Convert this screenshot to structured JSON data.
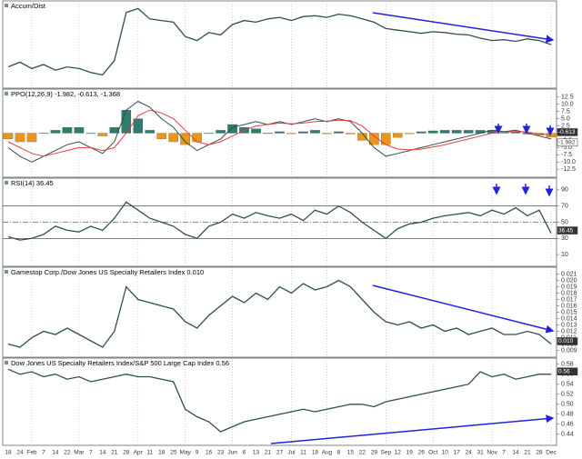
{
  "chart_data": [
    {
      "type": "line",
      "title": "Accum/Dist",
      "ylim": [
        0,
        100
      ],
      "series": [
        {
          "name": "Accum/Dist",
          "color": "#2f4f4f",
          "values": [
            22,
            28,
            20,
            25,
            18,
            22,
            20,
            15,
            12,
            30,
            90,
            95,
            82,
            80,
            78,
            60,
            55,
            65,
            62,
            75,
            80,
            78,
            82,
            84,
            80,
            85,
            86,
            84,
            88,
            86,
            82,
            78,
            70,
            68,
            66,
            64,
            66,
            65,
            63,
            62,
            58,
            55,
            56,
            54,
            57,
            55,
            50
          ]
        }
      ]
    },
    {
      "type": "line",
      "title": "PPO(12,26,9) -1.982, -0.613, -1.368",
      "ylim": [
        -14,
        14
      ],
      "yticks": [
        12.5,
        {
          "value": 10,
          "label": "10.0"
        },
        7.5,
        {
          "value": 5,
          "label": "5.0"
        },
        2.5,
        -2.5,
        {
          "value": -5,
          "label": "-5.0"
        },
        -7.5,
        {
          "value": -10,
          "label": "-10.0"
        },
        -12.5
      ],
      "end_labels": [
        {
          "value": -0.613,
          "label": "-0.613"
        },
        {
          "value": -1.982,
          "label": "-1.982"
        }
      ],
      "series": [
        {
          "name": "Histogram",
          "style": "bar",
          "color": "#2e7d6e",
          "negative_color": "#e8961e",
          "values": [
            -2,
            -3,
            -3,
            0,
            1,
            2,
            2,
            0,
            -1,
            2,
            8,
            5,
            1,
            -2,
            -3,
            -4,
            -3,
            0,
            1,
            3,
            2,
            1.5,
            0,
            0.5,
            -0.2,
            0.5,
            1,
            -0.2,
            0.5,
            -0.3,
            -2.5,
            -4,
            -4,
            -1.5,
            -0.2,
            0.5,
            0.8,
            1,
            1,
            1,
            1,
            1,
            0.2,
            0.4,
            -0.4,
            -0.7,
            -1.4
          ]
        },
        {
          "name": "PPO",
          "color": "#2f4f4f",
          "values": [
            -5,
            -8,
            -10,
            -8,
            -6,
            -4,
            -3,
            -5,
            -7,
            -3,
            8,
            11,
            9,
            5,
            2,
            -3,
            -6,
            -4,
            -2,
            2,
            3,
            4,
            3,
            4,
            3,
            4,
            5,
            4,
            5,
            4,
            0,
            -5,
            -8,
            -7,
            -6,
            -5,
            -4,
            -3,
            -2,
            -1,
            0,
            1,
            0.5,
            1,
            0,
            -1,
            -2
          ]
        },
        {
          "name": "Signal",
          "color": "#e04040",
          "values": [
            -3,
            -5,
            -7,
            -8,
            -7,
            -6,
            -5,
            -5,
            -6,
            -5,
            0,
            6,
            8,
            7,
            5,
            1,
            -3,
            -4,
            -3,
            -1,
            1,
            2.5,
            3,
            3.5,
            3.2,
            3.5,
            4,
            4.2,
            4.5,
            4.3,
            2.5,
            -1,
            -4,
            -5.5,
            -5.8,
            -5.5,
            -4.8,
            -4,
            -3,
            -2,
            -1,
            0,
            0.3,
            0.6,
            0.4,
            -0.3,
            -0.6
          ]
        }
      ]
    },
    {
      "type": "line",
      "title": "RSI(14) 36.45",
      "ylim": [
        0,
        100
      ],
      "yticks": [
        90,
        70,
        50,
        30,
        10
      ],
      "reference_lines": [
        70,
        50,
        30
      ],
      "end_labels": [
        {
          "value": 36.45,
          "label": "36.45"
        }
      ],
      "series": [
        {
          "name": "RSI",
          "color": "#2f4f4f",
          "values": [
            32,
            28,
            30,
            35,
            45,
            40,
            38,
            45,
            40,
            55,
            75,
            65,
            55,
            50,
            45,
            35,
            30,
            45,
            50,
            60,
            55,
            62,
            58,
            55,
            60,
            52,
            65,
            60,
            70,
            62,
            50,
            40,
            30,
            42,
            48,
            50,
            55,
            58,
            60,
            62,
            58,
            65,
            60,
            68,
            58,
            65,
            36.45
          ]
        }
      ]
    },
    {
      "type": "line",
      "title": "Gamestop Corp./Dow Jones US Specialty Retailers Index 0.010",
      "ylim": [
        0.0085,
        0.0215
      ],
      "yticks": [
        0.021,
        {
          "value": 0.02,
          "label": "0.020"
        },
        0.019,
        0.018,
        0.017,
        0.016,
        0.015,
        0.014,
        0.013,
        0.012,
        0.011,
        {
          "value": 0.01,
          "label": "0.010"
        },
        0.009
      ],
      "end_labels": [
        {
          "value": 0.01,
          "label": "0.010"
        }
      ],
      "series": [
        {
          "name": "Ratio",
          "color": "#2f4f4f",
          "values": [
            0.01,
            0.0095,
            0.011,
            0.012,
            0.0115,
            0.0125,
            0.0115,
            0.0105,
            0.0095,
            0.012,
            0.019,
            0.017,
            0.0165,
            0.016,
            0.0155,
            0.0135,
            0.0125,
            0.0145,
            0.016,
            0.0175,
            0.0165,
            0.018,
            0.017,
            0.019,
            0.018,
            0.0195,
            0.0185,
            0.019,
            0.02,
            0.019,
            0.017,
            0.015,
            0.0135,
            0.013,
            0.0135,
            0.0125,
            0.013,
            0.012,
            0.0125,
            0.0115,
            0.012,
            0.0125,
            0.0115,
            0.0115,
            0.012,
            0.0115,
            0.01
          ]
        }
      ]
    },
    {
      "type": "line",
      "title": "Dow Jones US Specialty Retailers Index/S&P 500 Large Cap Index 0.56",
      "ylim": [
        0.425,
        0.585
      ],
      "yticks": [
        0.58,
        0.56,
        0.54,
        0.52,
        {
          "value": 0.5,
          "label": "0.50"
        },
        0.48,
        0.46,
        0.44
      ],
      "end_labels": [
        {
          "value": 0.56,
          "label": "0.56"
        }
      ],
      "categories": [
        "18",
        "24",
        "Feb",
        "7",
        "14",
        "22",
        "Mar",
        "7",
        "14",
        "21",
        "28",
        "Apr",
        "11",
        "18",
        "25",
        "May",
        "9",
        "16",
        "23",
        "Jun",
        "6",
        "13",
        "21",
        "27",
        "Jul",
        "11",
        "18",
        "Aug",
        "8",
        "15",
        "22",
        "29",
        "Sep",
        "12",
        "19",
        "26",
        "Oct",
        "10",
        "17",
        "24",
        "31",
        "Nov",
        "7",
        "14",
        "21",
        "28",
        "Dec"
      ],
      "series": [
        {
          "name": "Ratio",
          "color": "#2f4f4f",
          "values": [
            0.57,
            0.56,
            0.565,
            0.555,
            0.56,
            0.55,
            0.555,
            0.545,
            0.55,
            0.555,
            0.56,
            0.555,
            0.555,
            0.55,
            0.545,
            0.49,
            0.475,
            0.465,
            0.445,
            0.455,
            0.465,
            0.47,
            0.475,
            0.48,
            0.485,
            0.49,
            0.485,
            0.49,
            0.495,
            0.5,
            0.5,
            0.495,
            0.505,
            0.51,
            0.515,
            0.52,
            0.525,
            0.53,
            0.535,
            0.54,
            0.565,
            0.555,
            0.56,
            0.55,
            0.555,
            0.56,
            0.56
          ]
        }
      ]
    }
  ]
}
